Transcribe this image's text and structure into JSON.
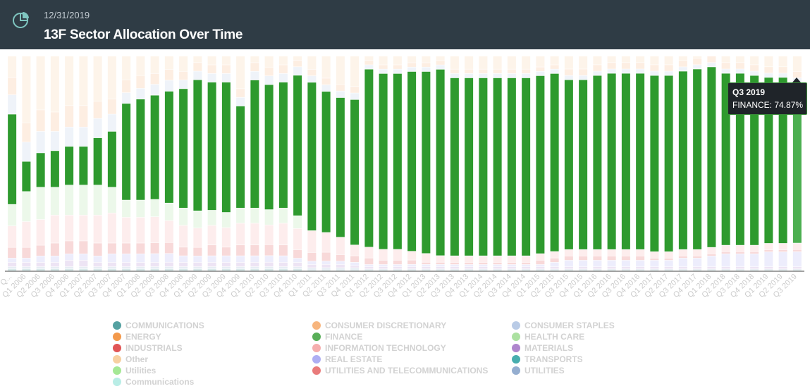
{
  "header": {
    "date": "12/31/2019",
    "title": "13F Sector Allocation Over Time",
    "icon": "pie-chart-icon"
  },
  "tooltip": {
    "title": "Q3 2019",
    "text": "FINANCE: 74.87%"
  },
  "colors": {
    "finance_active": "#2e9a2e",
    "finance_hover": "#4caf50",
    "header_bg": "#2f3c45"
  },
  "legend": [
    {
      "label": "COMMUNICATIONS",
      "color": "#2a8a8a"
    },
    {
      "label": "CONSUMER DISCRETIONARY",
      "color": "#f5a35c"
    },
    {
      "label": "CONSUMER STAPLES",
      "color": "#a7bee0"
    },
    {
      "label": "ENERGY",
      "color": "#f07f1e"
    },
    {
      "label": "FINANCE",
      "color": "#2e9a2e"
    },
    {
      "label": "HEALTH CARE",
      "color": "#97d98a"
    },
    {
      "label": "INDUSTRIALS",
      "color": "#d92b2b"
    },
    {
      "label": "INFORMATION TECHNOLOGY",
      "color": "#f29a9a"
    },
    {
      "label": "MATERIALS",
      "color": "#9b68c1"
    },
    {
      "label": "Other",
      "color": "#f5c48a"
    },
    {
      "label": "REAL ESTATE",
      "color": "#9a9af0"
    },
    {
      "label": "TRANSPORTS",
      "color": "#1a9a9a"
    },
    {
      "label": "Utilities",
      "color": "#8ee27a"
    },
    {
      "label": "UTILITIES AND TELECOMMUNICATIONS",
      "color": "#e35a5a"
    },
    {
      "label": "UTILITIES",
      "color": "#7a9ac4"
    },
    {
      "label": "Communications",
      "color": "#a8e8e0"
    }
  ],
  "chart_data": {
    "type": "bar",
    "stacked": true,
    "percent": true,
    "highlighted_series": "FINANCE",
    "hover_category": "Q3 2019",
    "categories": [
      "Q...",
      "Q1 2006",
      "Q2 2006",
      "Q3 2006",
      "Q4 2006",
      "Q1 2007",
      "Q2 2007",
      "Q3 2007",
      "Q4 2007",
      "Q1 2008",
      "Q2 2008",
      "Q3 2008",
      "Q4 2008",
      "Q1 2009",
      "Q2 2009",
      "Q3 2009",
      "Q4 2009",
      "Q1 2010",
      "Q2 2010",
      "Q3 2010",
      "Q4 2010",
      "Q1 2011",
      "Q2 2011",
      "Q3 2011",
      "Q4 2011",
      "Q1 2012",
      "Q2 2012",
      "Q3 2012",
      "Q4 2012",
      "Q1 2013",
      "Q2 2013",
      "Q3 2013",
      "Q4 2013",
      "Q1 2014",
      "Q2 2014",
      "Q3 2014",
      "Q4 2014",
      "Q1 2015",
      "Q2 2015",
      "Q3 2015",
      "Q4 2015",
      "Q1 2016",
      "Q2 2016",
      "Q3 2016",
      "Q4 2016",
      "Q1 2017",
      "Q2 2017",
      "Q3 2017",
      "Q4 2017",
      "Q1 2018",
      "Q2 2018",
      "Q3 2018",
      "Q4 2018",
      "Q1 2019",
      "Q2 2019",
      "Q3 2019"
    ],
    "series": [
      {
        "name": "COMMUNICATIONS",
        "values": [
          1,
          1,
          1,
          1,
          1,
          1,
          1,
          1,
          1,
          1,
          1,
          1,
          1,
          1,
          1,
          1,
          1,
          1,
          1,
          1,
          1,
          0.5,
          0.5,
          0.5,
          0.5,
          0.5,
          0.5,
          0.5,
          0.5,
          0.5,
          0.5,
          0.5,
          0.5,
          0.5,
          0.5,
          0.5,
          0.5,
          0.5,
          0.5,
          0.5,
          0.5,
          0.5,
          0.5,
          0.5,
          0.5,
          0.5,
          0.5,
          0.5,
          0.5,
          0.5,
          0.5,
          0.5,
          0.5,
          0.5,
          0.5,
          0.5
        ]
      },
      {
        "name": "UTILITIES",
        "values": [
          1,
          1,
          1,
          1,
          1,
          1,
          1,
          1,
          1,
          1,
          1,
          1,
          1,
          1,
          1,
          1,
          1,
          1,
          1,
          1,
          1,
          1,
          1,
          1,
          1,
          0.5,
          0.5,
          0.5,
          0.5,
          0.5,
          0.5,
          0.5,
          0.5,
          0.5,
          0.5,
          0.5,
          0.5,
          0.5,
          0.5,
          0.5,
          0.5,
          0.5,
          0.5,
          0.5,
          0.5,
          0.5,
          0.5,
          0.5,
          0.5,
          0.5,
          0.5,
          0.5,
          0.5,
          0.5,
          0.5,
          0.5
        ]
      },
      {
        "name": "MATERIALS",
        "values": [
          2,
          2,
          2,
          2,
          3,
          3,
          2,
          2,
          2,
          2,
          2,
          2,
          2,
          2,
          2,
          2,
          2,
          2,
          2,
          2,
          2,
          1.5,
          1.5,
          1.5,
          1,
          1,
          1,
          1,
          1,
          1,
          1,
          1,
          1,
          1,
          1,
          1,
          1,
          1,
          1,
          1,
          1,
          1,
          1,
          1,
          1,
          1,
          1,
          1,
          1,
          1,
          1,
          1,
          1,
          1,
          1,
          1
        ]
      },
      {
        "name": "REAL ESTATE",
        "values": [
          2,
          2,
          3,
          3,
          3,
          3,
          3,
          4,
          4,
          4,
          4,
          4,
          3,
          3,
          3,
          3,
          3,
          3,
          3,
          3,
          2,
          1.5,
          1.5,
          1.5,
          1.5,
          1,
          1,
          1,
          1,
          1,
          1,
          1,
          1,
          1,
          1,
          1,
          1,
          1,
          2,
          3,
          3,
          3,
          3,
          3,
          3,
          3,
          3,
          4,
          4,
          5,
          6,
          6,
          6,
          7,
          7,
          7
        ]
      },
      {
        "name": "INDUSTRIALS",
        "values": [
          5,
          5,
          5,
          6,
          6,
          6,
          6,
          5,
          5,
          5,
          5,
          5,
          4,
          4,
          5,
          4,
          5,
          5,
          5,
          5,
          4,
          4,
          4,
          3,
          3,
          3,
          2,
          2,
          2,
          1,
          1,
          1,
          1,
          1,
          1,
          1,
          1,
          2,
          2,
          2,
          2,
          2,
          2,
          2,
          2,
          1,
          1,
          1,
          1,
          1,
          1,
          1,
          1,
          1,
          1,
          1
        ]
      },
      {
        "name": "INFORMATION TECHNOLOGY",
        "values": [
          10,
          12,
          12,
          13,
          12,
          12,
          13,
          14,
          12,
          12,
          12,
          10,
          10,
          9,
          9,
          9,
          10,
          10,
          9,
          10,
          10,
          10,
          9,
          8,
          5,
          5,
          5,
          5,
          4,
          4,
          3,
          3,
          3,
          3,
          3,
          3,
          3,
          3,
          3,
          3,
          3,
          3,
          3,
          3,
          3,
          3,
          3,
          3,
          3,
          3,
          3,
          3,
          3,
          3,
          3,
          3
        ]
      },
      {
        "name": "HEALTH CARE",
        "values": [
          10,
          14,
          15,
          13,
          14,
          14,
          14,
          12,
          8,
          8,
          8,
          8,
          8,
          8,
          7,
          7,
          7,
          7,
          7,
          7,
          6,
          0,
          0,
          0,
          0,
          0,
          0,
          0,
          0,
          0,
          0,
          0,
          0,
          0,
          0,
          0,
          0,
          0,
          0,
          0,
          0,
          0,
          0,
          0,
          0,
          0,
          0,
          0,
          0,
          0,
          0,
          0,
          0,
          0,
          0,
          0
        ]
      },
      {
        "name": "FINANCE",
        "values": [
          42,
          14,
          16,
          17,
          18,
          18,
          22,
          26,
          45,
          47,
          48,
          51,
          55,
          61,
          59,
          60,
          47,
          59,
          57,
          58,
          66,
          68,
          64,
          64,
          67,
          82,
          81,
          81,
          82,
          83,
          85,
          82,
          82,
          82,
          82,
          82,
          82,
          82,
          82,
          79,
          79,
          81,
          82,
          82,
          82,
          82,
          82,
          83,
          84,
          84,
          80,
          80,
          79,
          78,
          78,
          74.87
        ]
      },
      {
        "name": "CONSUMER STAPLES",
        "values": [
          9,
          9,
          10,
          9,
          9,
          9,
          9,
          8,
          5,
          5,
          5,
          5,
          4,
          4,
          4,
          4,
          4,
          4,
          4,
          4,
          4,
          3,
          3,
          3,
          3,
          2,
          2,
          2,
          2,
          2,
          2,
          2,
          2,
          2,
          2,
          2,
          2,
          2,
          2,
          2,
          2,
          2,
          2,
          2,
          2,
          2,
          2,
          2,
          2,
          2,
          2,
          2,
          2,
          2,
          2,
          2
        ]
      },
      {
        "name": "CONSUMER DISCRETIONARY",
        "values": [
          8,
          9,
          10,
          9,
          10,
          10,
          8,
          7,
          6,
          6,
          5,
          5,
          4,
          4,
          4,
          4,
          4,
          4,
          4,
          4,
          3,
          3,
          3,
          3,
          3,
          2,
          2,
          2,
          2,
          2,
          2,
          2,
          2,
          2,
          2,
          2,
          2,
          2,
          2,
          3,
          3,
          3,
          3,
          3,
          3,
          3,
          3,
          3,
          3,
          3,
          3,
          3,
          3,
          3,
          3,
          3
        ]
      },
      {
        "name": "Other",
        "values": [
          10,
          31,
          25,
          26,
          23,
          23,
          21,
          20,
          11,
          9,
          8,
          6,
          7,
          3,
          4,
          4,
          15,
          3,
          5,
          4,
          2,
          6,
          10,
          13,
          14,
          2,
          4,
          4,
          3,
          3,
          2,
          6,
          6,
          6,
          6,
          6,
          6,
          5,
          4,
          6,
          6,
          4,
          3,
          3,
          3,
          4,
          4,
          2,
          1,
          0,
          3,
          3,
          4,
          5,
          5,
          7.13
        ]
      }
    ],
    "ylim": [
      0,
      100
    ]
  }
}
